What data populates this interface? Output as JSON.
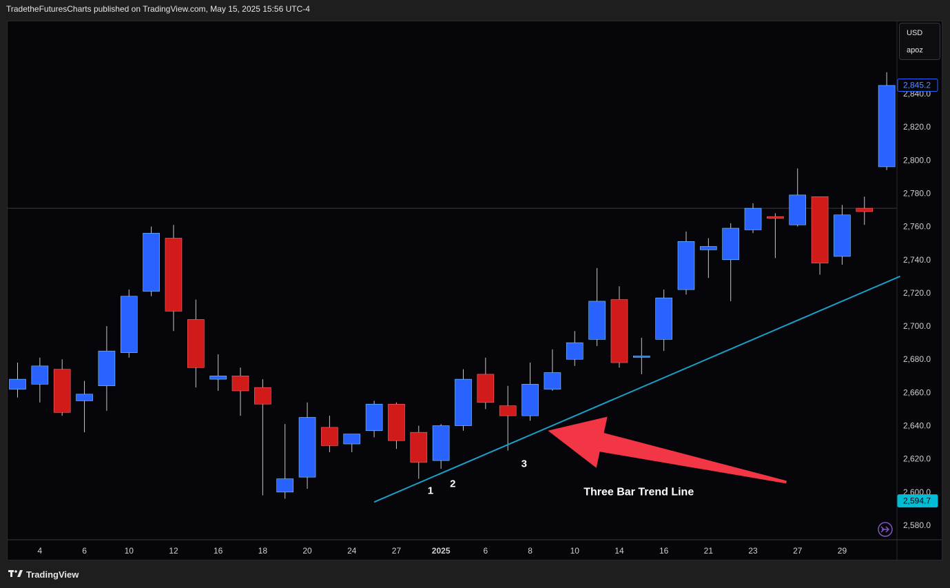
{
  "header": {
    "published_line": "TradetheFuturesCharts published on TradingView.com, May 15, 2025 15:56 UTC-4"
  },
  "currency_box": {
    "currency": "USD",
    "unit": "apoz"
  },
  "footer": {
    "brand": "TradingView",
    "logo_icon": "tradingview-logo-icon"
  },
  "colors": {
    "up": "#2962ff",
    "down": "#d11a1a",
    "wick": "#c8c8c8",
    "trendline": "#1aa0c8",
    "arrow": "#f23645",
    "last_price_tag": "#2962ff",
    "low_price_tag": "#00bcd4"
  },
  "chart_data": {
    "type": "candlestick",
    "y_axis": {
      "ticks": [
        2580,
        2600,
        2620,
        2640,
        2660,
        2680,
        2700,
        2720,
        2740,
        2760,
        2780,
        2800,
        2820,
        2840
      ],
      "tick_labels": [
        "2,580.0",
        "2,600.0",
        "2,620.0",
        "2,640.0",
        "2,660.0",
        "2,680.0",
        "2,700.0",
        "2,720.0",
        "2,740.0",
        "2,760.0",
        "2,780.0",
        "2,800.0",
        "2,820.0",
        "2,840.0"
      ],
      "range": [
        2572,
        2858
      ]
    },
    "x_axis": {
      "tick_labels": [
        {
          "label": "4",
          "index": 1
        },
        {
          "label": "6",
          "index": 3
        },
        {
          "label": "10",
          "index": 5
        },
        {
          "label": "12",
          "index": 7
        },
        {
          "label": "16",
          "index": 9
        },
        {
          "label": "18",
          "index": 11
        },
        {
          "label": "20",
          "index": 13
        },
        {
          "label": "24",
          "index": 15
        },
        {
          "label": "27",
          "index": 17
        },
        {
          "label": "2025",
          "index": 19
        },
        {
          "label": "6",
          "index": 21
        },
        {
          "label": "8",
          "index": 23
        },
        {
          "label": "10",
          "index": 25
        },
        {
          "label": "14",
          "index": 27
        },
        {
          "label": "16",
          "index": 29
        },
        {
          "label": "21",
          "index": 31
        },
        {
          "label": "23",
          "index": 33
        },
        {
          "label": "27",
          "index": 35
        },
        {
          "label": "29",
          "index": 37
        }
      ]
    },
    "candles": [
      {
        "o": 2662,
        "h": 2678,
        "l": 2657,
        "c": 2668
      },
      {
        "o": 2665,
        "h": 2681,
        "l": 2654,
        "c": 2676
      },
      {
        "o": 2674,
        "h": 2680,
        "l": 2646,
        "c": 2648
      },
      {
        "o": 2655,
        "h": 2667,
        "l": 2636,
        "c": 2659
      },
      {
        "o": 2664,
        "h": 2700,
        "l": 2649,
        "c": 2685
      },
      {
        "o": 2684,
        "h": 2722,
        "l": 2681,
        "c": 2718
      },
      {
        "o": 2721,
        "h": 2760,
        "l": 2718,
        "c": 2756
      },
      {
        "o": 2753,
        "h": 2761,
        "l": 2697,
        "c": 2709
      },
      {
        "o": 2704,
        "h": 2716,
        "l": 2663,
        "c": 2675
      },
      {
        "o": 2668,
        "h": 2683,
        "l": 2661,
        "c": 2670
      },
      {
        "o": 2670,
        "h": 2675,
        "l": 2646,
        "c": 2661
      },
      {
        "o": 2663,
        "h": 2668,
        "l": 2598,
        "c": 2653
      },
      {
        "o": 2600,
        "h": 2641,
        "l": 2596,
        "c": 2608
      },
      {
        "o": 2609,
        "h": 2654,
        "l": 2602,
        "c": 2645
      },
      {
        "o": 2639,
        "h": 2646,
        "l": 2624,
        "c": 2628
      },
      {
        "o": 2629,
        "h": 2635,
        "l": 2624,
        "c": 2635
      },
      {
        "o": 2637,
        "h": 2655,
        "l": 2633,
        "c": 2653
      },
      {
        "o": 2653,
        "h": 2654,
        "l": 2626,
        "c": 2631
      },
      {
        "o": 2636,
        "h": 2640,
        "l": 2608,
        "c": 2618
      },
      {
        "o": 2619,
        "h": 2641,
        "l": 2614,
        "c": 2640
      },
      {
        "o": 2640,
        "h": 2674,
        "l": 2637,
        "c": 2668
      },
      {
        "o": 2671,
        "h": 2681,
        "l": 2650,
        "c": 2654
      },
      {
        "o": 2652,
        "h": 2664,
        "l": 2625,
        "c": 2646
      },
      {
        "o": 2646,
        "h": 2678,
        "l": 2643,
        "c": 2665
      },
      {
        "o": 2662,
        "h": 2686,
        "l": 2661,
        "c": 2672
      },
      {
        "o": 2680,
        "h": 2697,
        "l": 2676,
        "c": 2690
      },
      {
        "o": 2692,
        "h": 2735,
        "l": 2688,
        "c": 2715
      },
      {
        "o": 2716,
        "h": 2724,
        "l": 2675,
        "c": 2678
      },
      {
        "o": 2682,
        "h": 2693,
        "l": 2671,
        "c": 2682
      },
      {
        "o": 2692,
        "h": 2722,
        "l": 2685,
        "c": 2717
      },
      {
        "o": 2722,
        "h": 2757,
        "l": 2719,
        "c": 2751
      },
      {
        "o": 2746,
        "h": 2753,
        "l": 2729,
        "c": 2748
      },
      {
        "o": 2740,
        "h": 2762,
        "l": 2715,
        "c": 2759
      },
      {
        "o": 2758,
        "h": 2774,
        "l": 2756,
        "c": 2771
      },
      {
        "o": 2766,
        "h": 2768,
        "l": 2741,
        "c": 2765
      },
      {
        "o": 2761,
        "h": 2795,
        "l": 2760,
        "c": 2779
      },
      {
        "o": 2778,
        "h": 2778,
        "l": 2731,
        "c": 2738
      },
      {
        "o": 2742,
        "h": 2773,
        "l": 2737,
        "c": 2767
      },
      {
        "o": 2771,
        "h": 2778,
        "l": 2761,
        "c": 2769
      },
      {
        "o": 2796,
        "h": 2853,
        "l": 2794,
        "c": 2845
      }
    ],
    "horizontal_line": 2771,
    "trendline": [
      {
        "index": 16,
        "price": 2594
      },
      {
        "index": 39.6,
        "price": 2730
      }
    ],
    "price_tags": [
      {
        "label": "2,845.2",
        "value": 2845.2,
        "style": "last"
      },
      {
        "label": "2,594.7",
        "value": 2594.7,
        "style": "low"
      }
    ],
    "annotations": [
      {
        "text": "1",
        "index": 18.4,
        "price": 2599
      },
      {
        "text": "2",
        "index": 19.4,
        "price": 2603
      },
      {
        "text": "3",
        "index": 22.6,
        "price": 2615
      },
      {
        "text": "Three Bar Trend Line",
        "index": 25.4,
        "price": 2598
      }
    ],
    "arrow": {
      "tip": {
        "index": 23.8,
        "price": 2637
      },
      "tail": {
        "index": 34.5,
        "price": 2606
      }
    }
  }
}
